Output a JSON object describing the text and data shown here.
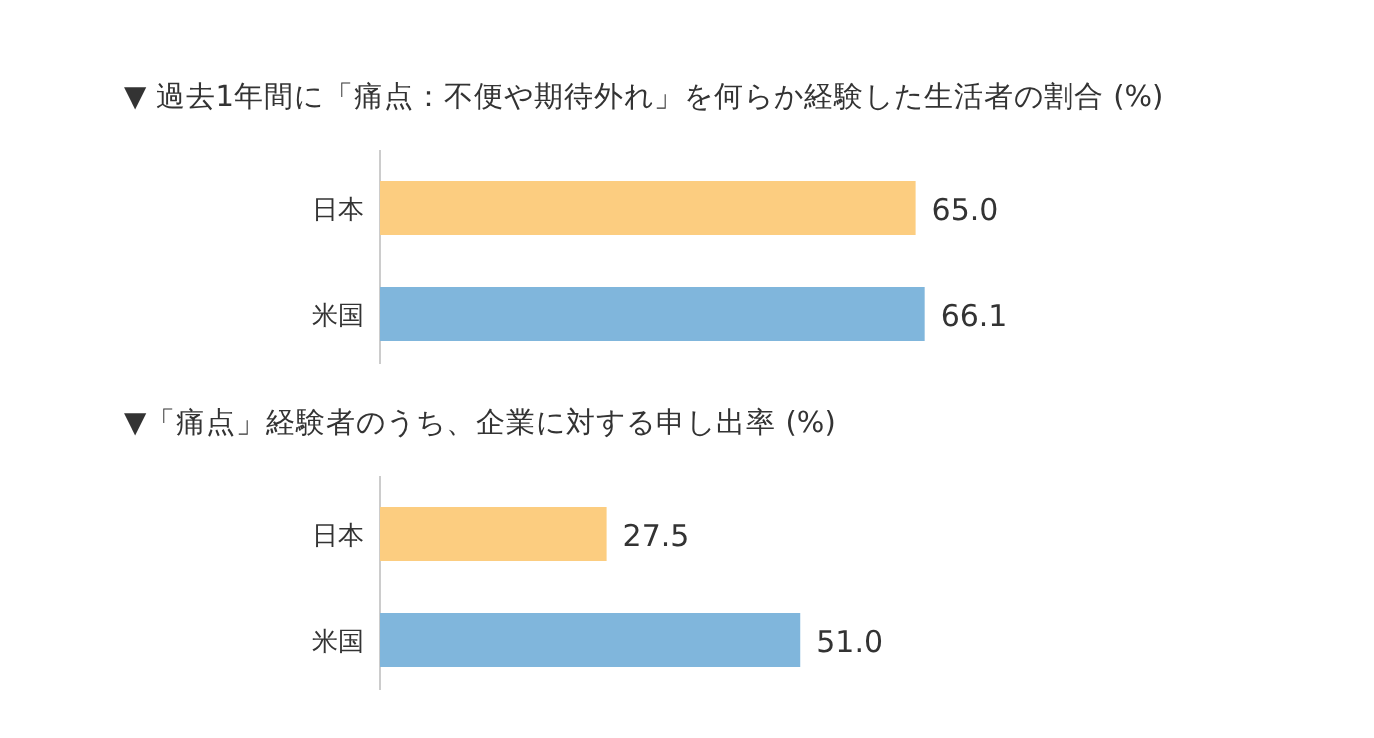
{
  "chart_data": [
    {
      "type": "bar",
      "orientation": "horizontal",
      "title": "▼ 過去1年間に「痛点：不便や期待外れ」を何らか経験した生活者の割合 (%)",
      "categories": [
        "日本",
        "米国"
      ],
      "values": [
        65.0,
        66.1
      ],
      "value_labels": [
        "65.0",
        "66.1"
      ],
      "colors": [
        "#fccd80",
        "#80b6dc"
      ]
    },
    {
      "type": "bar",
      "orientation": "horizontal",
      "title": "▼「痛点」経験者のうち、企業に対する申し出率 (%)",
      "categories": [
        "日本",
        "米国"
      ],
      "values": [
        27.5,
        51.0
      ],
      "value_labels": [
        "27.5",
        "51.0"
      ],
      "colors": [
        "#fccd80",
        "#80b6dc"
      ]
    }
  ]
}
